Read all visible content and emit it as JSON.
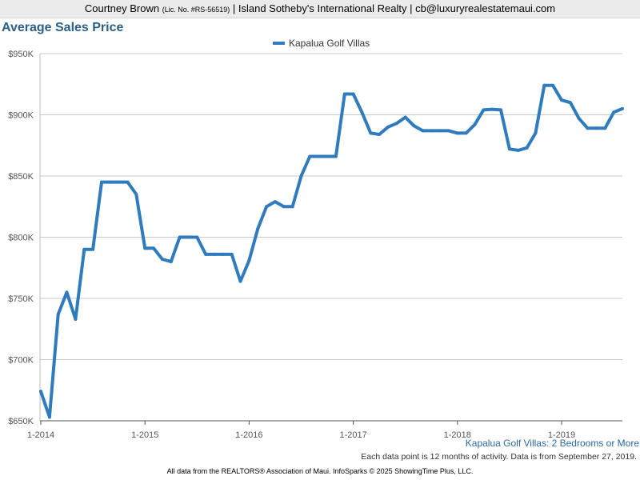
{
  "header": {
    "agent_name": "Courtney Brown",
    "license": "(Lic. No. #RS-56519)",
    "separator": " | ",
    "brokerage": "Island Sotheby's International Realty",
    "email": "cb@luxuryrealestatemaui.com"
  },
  "chart_data": {
    "type": "line",
    "title": "Average Sales Price",
    "subtitle": "Kapalua Golf Villas: 2 Bedrooms or More",
    "note": "Each data point is 12 months of activity. Data is from September 27, 2019.",
    "series": [
      {
        "name": "Kapalua Golf Villas",
        "color": "#2f7bbd",
        "x": [
          "2014-01",
          "2014-02",
          "2014-03",
          "2014-04",
          "2014-05",
          "2014-06",
          "2014-07",
          "2014-08",
          "2014-09",
          "2014-10",
          "2014-11",
          "2014-12",
          "2015-01",
          "2015-02",
          "2015-03",
          "2015-04",
          "2015-05",
          "2015-06",
          "2015-07",
          "2015-08",
          "2015-09",
          "2015-10",
          "2015-11",
          "2015-12",
          "2016-01",
          "2016-02",
          "2016-03",
          "2016-04",
          "2016-05",
          "2016-06",
          "2016-07",
          "2016-08",
          "2016-09",
          "2016-10",
          "2016-11",
          "2016-12",
          "2017-01",
          "2017-02",
          "2017-03",
          "2017-04",
          "2017-05",
          "2017-06",
          "2017-07",
          "2017-08",
          "2017-09",
          "2017-10",
          "2017-11",
          "2017-12",
          "2018-01",
          "2018-02",
          "2018-03",
          "2018-04",
          "2018-05",
          "2018-06",
          "2018-07",
          "2018-08",
          "2018-09",
          "2018-10",
          "2018-11",
          "2018-12",
          "2019-01",
          "2019-02",
          "2019-03",
          "2019-04",
          "2019-05",
          "2019-06",
          "2019-07",
          "2019-08"
        ],
        "values": [
          674000,
          653000,
          737000,
          755000,
          733000,
          790000,
          790000,
          845000,
          845000,
          845000,
          845000,
          835000,
          791000,
          791000,
          782000,
          780000,
          800000,
          800000,
          800000,
          786000,
          786000,
          786000,
          786000,
          764000,
          781000,
          807000,
          825000,
          829000,
          825000,
          825000,
          850000,
          866000,
          866000,
          866000,
          866000,
          917000,
          917000,
          902000,
          885000,
          884000,
          890000,
          893000,
          898000,
          891000,
          887000,
          887000,
          887000,
          887000,
          885000,
          885000,
          892000,
          904000,
          904500,
          904000,
          872000,
          871000,
          873000,
          885000,
          924000,
          924000,
          912000,
          910000,
          897000,
          889000,
          889000,
          889000,
          902000,
          905000
        ]
      }
    ],
    "x_tick_labels": [
      "1-2014",
      "1-2015",
      "1-2016",
      "1-2017",
      "1-2018",
      "1-2019"
    ],
    "x_tick_dates": [
      "2014-01",
      "2015-01",
      "2016-01",
      "2017-01",
      "2018-01",
      "2019-01"
    ],
    "y_ticks": [
      650000,
      700000,
      750000,
      800000,
      850000,
      900000,
      950000
    ],
    "y_tick_labels": [
      "$650K",
      "$700K",
      "$750K",
      "$800K",
      "$850K",
      "$900K",
      "$950K"
    ],
    "ylim": [
      650000,
      950000
    ],
    "grid": true,
    "legend_position": "top-center"
  },
  "footer": "All data from the REALTORS® Association of Maui. InfoSparks © 2025 ShowingTime Plus, LLC."
}
